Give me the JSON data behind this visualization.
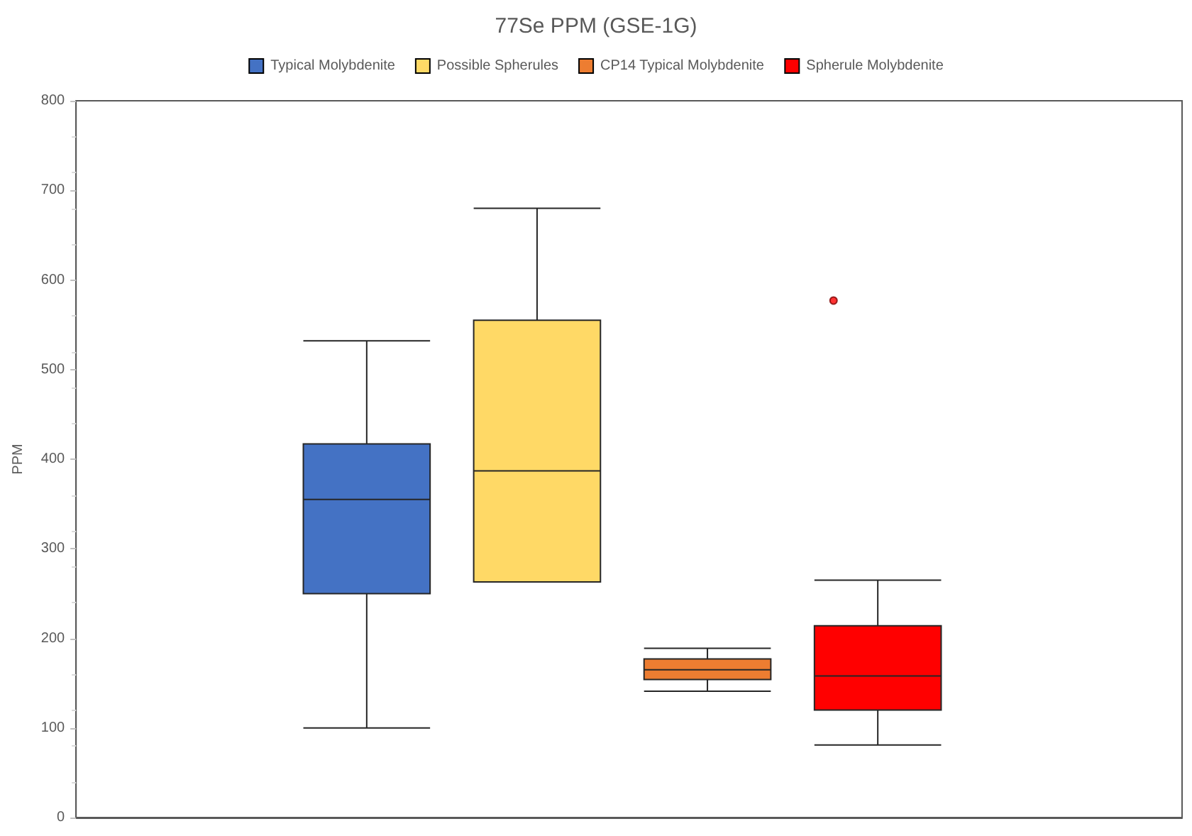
{
  "chart_data": {
    "type": "box",
    "title": "77Se PPM (GSE-1G)",
    "ylabel": "PPM",
    "categories": [
      null
    ],
    "ylim": [
      0,
      800
    ],
    "yticks": [
      0,
      100,
      200,
      300,
      400,
      500,
      600,
      700,
      800
    ],
    "grid": false,
    "legend": "top",
    "series": [
      {
        "name": "Typical Molybdenite",
        "color": "#4472c4",
        "boxes": [
          {
            "low": 100,
            "q1": 250,
            "median": 355,
            "q3": 417,
            "high": 532
          }
        ]
      },
      {
        "name": "Possible Spherules",
        "color": "#ffd966",
        "boxes": [
          {
            "low": 263,
            "q1": 263,
            "median": 387,
            "q3": 555,
            "high": 680
          }
        ]
      },
      {
        "name": "CP14 Typical Molybdenite",
        "color": "#ed7d31",
        "boxes": [
          {
            "low": 141,
            "q1": 154,
            "median": 165,
            "q3": 177,
            "high": 189
          }
        ]
      },
      {
        "name": "Spherule Molybdenite",
        "color": "#ff0000",
        "boxes": [
          {
            "low": 81,
            "q1": 120,
            "median": 158,
            "q3": 214,
            "high": 265,
            "outliers": [
              577
            ]
          }
        ]
      }
    ]
  }
}
